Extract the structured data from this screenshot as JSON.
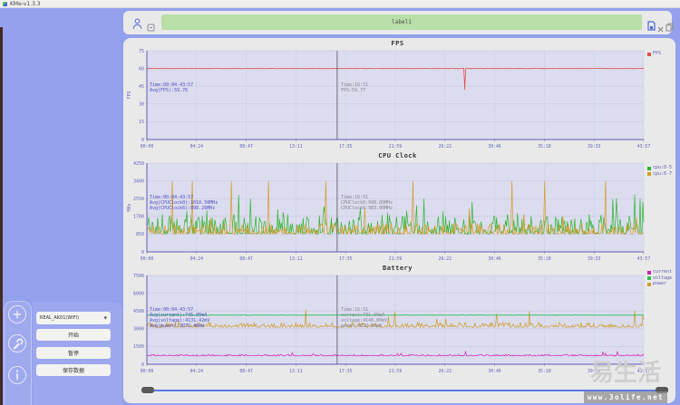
{
  "window": {
    "title": "KMe-v1.3.3"
  },
  "topbar": {
    "input_value": "label1"
  },
  "controls": {
    "device_option": "REAL_AK01(WIFI)",
    "start_label": "开始",
    "pause_label": "暂停",
    "save_label": "保存数据"
  },
  "watermark": {
    "brand": "易生活",
    "url": "www.3olife.net"
  },
  "chart_data": [
    {
      "type": "line",
      "title": "FPS",
      "ylabel": "FPS",
      "ylim": [
        0,
        75
      ],
      "yticks": [
        75,
        60,
        45,
        30,
        15,
        0
      ],
      "xticks": [
        "00:00",
        "04:24",
        "08:47",
        "13:11",
        "17:35",
        "21:59",
        "26:22",
        "30:46",
        "35:10",
        "39:33",
        "43:57"
      ],
      "legend": [
        {
          "label": "FPS",
          "color": "#e0504e"
        }
      ],
      "series": [
        {
          "name": "FPS",
          "color": "#e0504e",
          "base": 60,
          "noise": 0.25,
          "two_sided": true,
          "dip": {
            "x": 0.64,
            "value": 42
          },
          "width": 0.8
        }
      ],
      "cursor_x": 0.383,
      "annotations": {
        "left": {
          "color": "#4d4dc3",
          "lines": [
            "Time:00:04-43:57",
            "Avg(FPS):59.76"
          ]
        },
        "right": {
          "color": "#84848f",
          "lines": [
            "Time:16:51",
            "FPS:59.77"
          ]
        }
      }
    },
    {
      "type": "line",
      "title": "CPU Clock",
      "ylabel": "MHz",
      "ylim": [
        0,
        4250
      ],
      "yticks": [
        4250,
        3400,
        2550,
        1700,
        850,
        0
      ],
      "xticks": [
        "00:00",
        "04:24",
        "08:47",
        "13:11",
        "17:35",
        "21:59",
        "26:22",
        "30:46",
        "35:10",
        "39:33",
        "43:57"
      ],
      "legend": [
        {
          "label": "cpu:0-5",
          "color": "#2db52d"
        },
        {
          "label": "cpu:6-7",
          "color": "#d99b26"
        }
      ],
      "series": [
        {
          "name": "cpu:0-5",
          "color": "#2db52d",
          "base": 860,
          "noise": 950,
          "spike_chance": 0.05,
          "spike_max": 2780,
          "width": 0.7
        },
        {
          "name": "cpu:6-7",
          "color": "#d99b26",
          "base": 850,
          "noise": 520,
          "spike_chance": 0.012,
          "spike_max": 2300,
          "spikes_at": [
            0.051,
            0.091,
            0.17,
            0.245,
            0.361,
            0.535,
            0.735,
            0.801,
            0.923
          ],
          "spike_value": 3400,
          "width": 0.7
        }
      ],
      "cursor_x": 0.383,
      "annotations": {
        "left": {
          "color": "#4d4dc3",
          "lines": [
            "Time:00:04-43:57",
            "Avg(CPUClock0):1010.50MHz",
            "Avg(CPUClock6):898.26MHz"
          ]
        },
        "right": {
          "color": "#84848f",
          "lines": [
            "Time:16:51",
            "CPUClock0:998.00MHz",
            "CPUClock6:983.00MHz"
          ]
        }
      }
    },
    {
      "type": "line",
      "title": "Battery",
      "ylabel": "",
      "ylim": [
        0,
        7500
      ],
      "yticks": [
        7500,
        6000,
        4500,
        3000,
        1500,
        0
      ],
      "xticks": [
        "00:00",
        "04:24",
        "08:47",
        "13:11",
        "17:35",
        "21:59",
        "26:22",
        "30:46",
        "35:10",
        "39:33",
        "43:57"
      ],
      "legend": [
        {
          "label": "current",
          "color": "#cf1fae"
        },
        {
          "label": "voltage",
          "color": "#2fbf4f"
        },
        {
          "label": "power",
          "color": "#cf9d29"
        }
      ],
      "series": [
        {
          "name": "power",
          "color": "#cf9d29",
          "base": 3120,
          "noise": 420,
          "spike_chance": 0.012,
          "spike_max": 4650,
          "width": 0.7
        },
        {
          "name": "current",
          "color": "#cf1fae",
          "base": 700,
          "noise": 130,
          "spike_chance": 0.02,
          "spike_max": 1150,
          "width": 0.7
        },
        {
          "name": "voltage",
          "color": "#2fbf4f",
          "base": 4150,
          "noise": 15,
          "two_sided": true,
          "width": 0.9
        }
      ],
      "cursor_x": 0.383,
      "annotations": {
        "left": {
          "color": "#4d4dc3",
          "lines": [
            "Time:00:04-43:57",
            "Avg(current):745.05mA",
            "Avg(voltage):4131.42mV",
            "Avg(power):3072.40mW"
          ]
        },
        "right": {
          "color": "#84848f",
          "lines": [
            "Time:16:51",
            "current:731.00mA",
            "voltage:4148.00mV",
            "power:3020.00mW"
          ]
        }
      }
    }
  ]
}
